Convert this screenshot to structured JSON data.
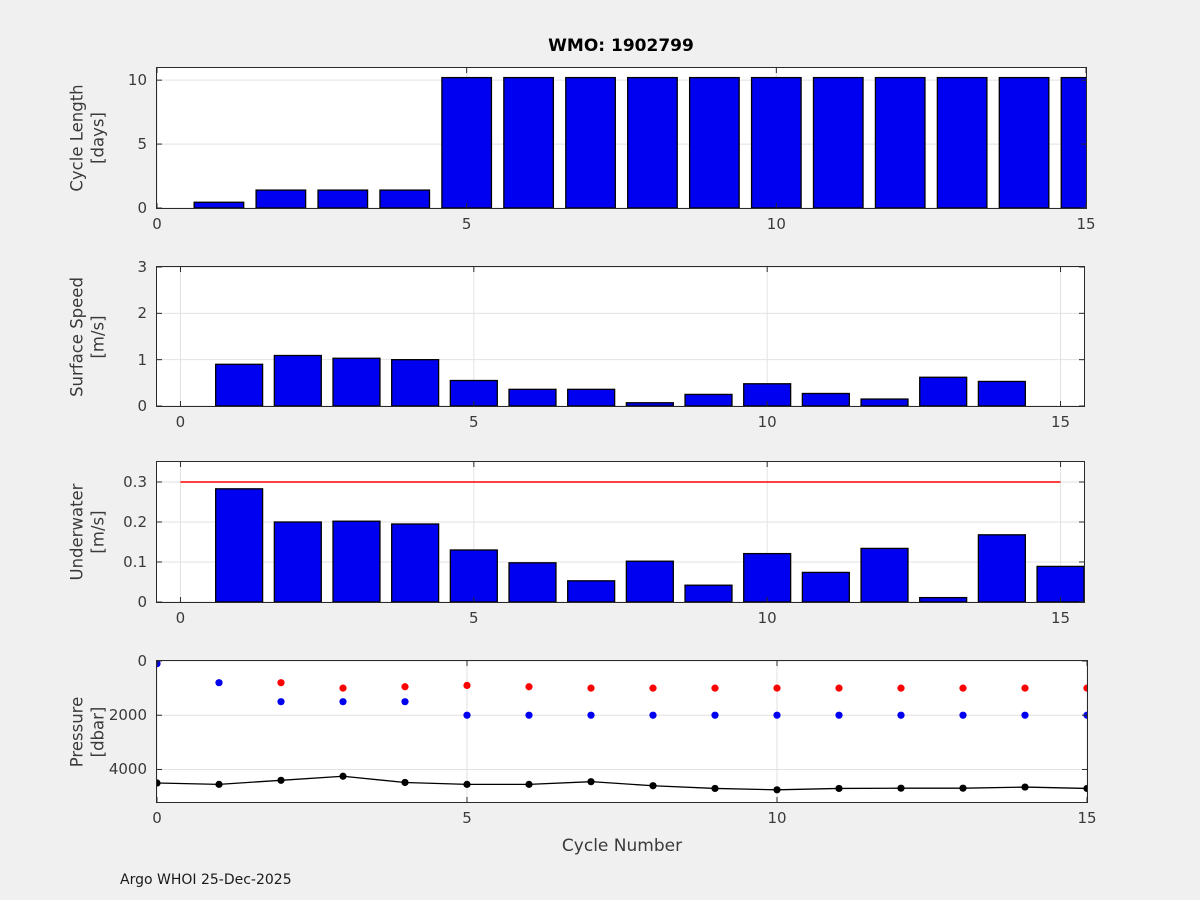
{
  "title": "WMO: 1902799",
  "xlabel": "Cycle Number",
  "footer": "Argo WHOI 25-Dec-2025",
  "colors": {
    "figure_bg": "#f0f0f0",
    "axes_bg": "#ffffff",
    "bar_fill": "#0000f0",
    "bar_edge": "#000000",
    "threshold_red": "#ff0000",
    "marker_red": "#ff0000",
    "marker_blue": "#0000f0",
    "line_black": "#000000",
    "grid": "#e2e2e2",
    "spine": "#2a2a2a"
  },
  "chart_data": [
    {
      "id": "cycle-length",
      "type": "bar",
      "ylabel_lines": [
        "Cycle Length",
        "[days]"
      ],
      "xlim": [
        0,
        15
      ],
      "ylim": [
        0,
        10.95
      ],
      "xticks": [
        0,
        5,
        10,
        15
      ],
      "xtick_labels": [
        "0",
        "5",
        "10",
        "15"
      ],
      "yticks": [
        0,
        5,
        10
      ],
      "ytick_labels": [
        "0",
        "5",
        "10"
      ],
      "bar_width": 0.8,
      "x": [
        1,
        2,
        3,
        4,
        5,
        6,
        7,
        8,
        9,
        10,
        11,
        12,
        13,
        14,
        15
      ],
      "values": [
        0.45,
        1.4,
        1.4,
        1.4,
        10.2,
        10.2,
        10.2,
        10.2,
        10.2,
        10.2,
        10.2,
        10.2,
        10.2,
        10.2,
        10.2
      ]
    },
    {
      "id": "surface-speed",
      "type": "bar",
      "ylabel_lines": [
        "Surface Speed",
        "[m/s]"
      ],
      "xlim": [
        -0.4,
        15.4
      ],
      "ylim": [
        0,
        3
      ],
      "xticks": [
        0,
        5,
        10,
        15
      ],
      "xtick_labels": [
        "0",
        "5",
        "10",
        "15"
      ],
      "yticks": [
        0,
        1,
        2,
        3
      ],
      "ytick_labels": [
        "0",
        "1",
        "2",
        "3"
      ],
      "bar_width": 0.8,
      "x": [
        1,
        2,
        3,
        4,
        5,
        6,
        7,
        8,
        9,
        10,
        11,
        12,
        13,
        14
      ],
      "values": [
        0.9,
        1.09,
        1.03,
        1.0,
        0.55,
        0.36,
        0.36,
        0.07,
        0.25,
        0.48,
        0.27,
        0.15,
        0.62,
        0.53
      ]
    },
    {
      "id": "underwater-speed",
      "type": "bar",
      "ylabel_lines": [
        "Underwater",
        "[m/s]"
      ],
      "xlim": [
        -0.4,
        15.4
      ],
      "ylim": [
        0,
        0.35
      ],
      "xticks": [
        0,
        5,
        10,
        15
      ],
      "xtick_labels": [
        "0",
        "5",
        "10",
        "15"
      ],
      "yticks": [
        0,
        0.1,
        0.2,
        0.3
      ],
      "ytick_labels": [
        "0",
        "0.1",
        "0.2",
        "0.3"
      ],
      "bar_width": 0.8,
      "x": [
        1,
        2,
        3,
        4,
        5,
        6,
        7,
        8,
        9,
        10,
        11,
        12,
        13,
        14,
        15
      ],
      "values": [
        0.283,
        0.2,
        0.202,
        0.195,
        0.13,
        0.098,
        0.053,
        0.102,
        0.042,
        0.121,
        0.074,
        0.134,
        0.011,
        0.168,
        0.089
      ],
      "hline": {
        "y": 0.3,
        "x_start": 0,
        "x_end": 15,
        "color": "#ff0000"
      }
    },
    {
      "id": "pressure",
      "type": "scatter",
      "ylabel_lines": [
        "Pressure",
        "[dbar]"
      ],
      "xlim": [
        0,
        15
      ],
      "ylim": [
        0,
        5200
      ],
      "y_reversed": true,
      "xticks": [
        0,
        5,
        10,
        15
      ],
      "xtick_labels": [
        "0",
        "5",
        "10",
        "15"
      ],
      "yticks": [
        0,
        2000,
        4000
      ],
      "ytick_labels": [
        "0",
        "2000",
        "4000"
      ],
      "series": [
        {
          "name": "park-pressure-red",
          "color": "#ff0000",
          "marker": "dot",
          "line": false,
          "x": [
            2,
            3,
            4,
            5,
            6,
            7,
            8,
            9,
            10,
            11,
            12,
            13,
            14,
            15
          ],
          "y": [
            800,
            1000,
            950,
            900,
            950,
            1000,
            1000,
            1000,
            1000,
            1000,
            1000,
            1000,
            1000,
            1000
          ]
        },
        {
          "name": "profile-pressure-blue",
          "color": "#0000f0",
          "marker": "dot",
          "line": false,
          "x": [
            0,
            1,
            2,
            3,
            4,
            5,
            6,
            7,
            8,
            9,
            10,
            11,
            12,
            13,
            14,
            15
          ],
          "y": [
            100,
            800,
            1500,
            1500,
            1500,
            2000,
            2000,
            2000,
            2000,
            2000,
            2000,
            2000,
            2000,
            2000,
            2000,
            2000
          ]
        },
        {
          "name": "max-depth-black",
          "color": "#000000",
          "marker": "dot",
          "line": true,
          "x": [
            0,
            1,
            2,
            3,
            4,
            5,
            6,
            7,
            8,
            9,
            10,
            11,
            12,
            13,
            14,
            15
          ],
          "y": [
            4500,
            4550,
            4400,
            4250,
            4480,
            4550,
            4550,
            4450,
            4600,
            4700,
            4750,
            4700,
            4690,
            4690,
            4650,
            4700
          ]
        }
      ]
    }
  ]
}
